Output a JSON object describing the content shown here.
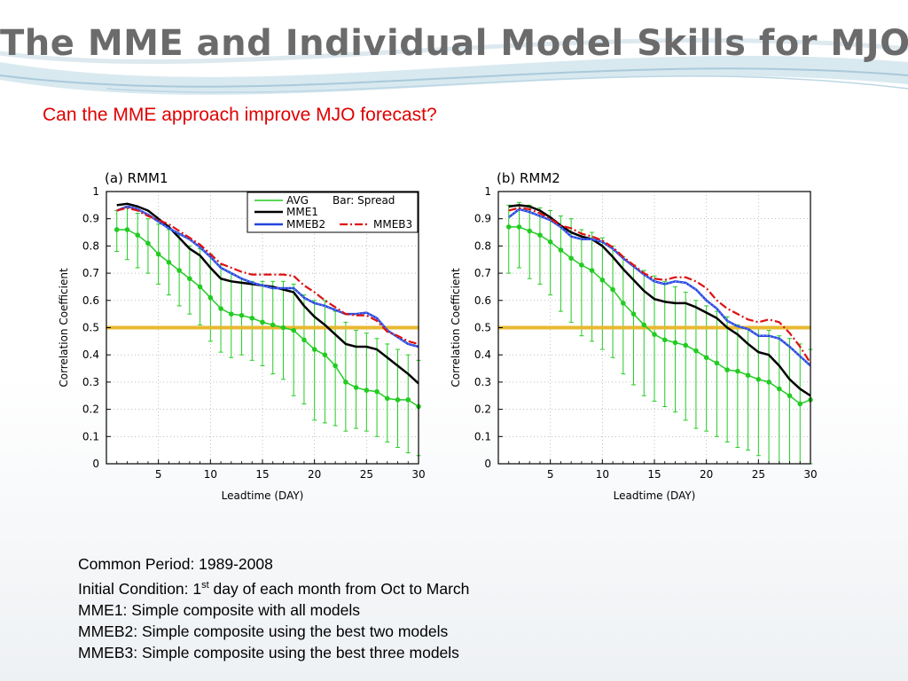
{
  "slide": {
    "title": "The MME and Individual Model Skills for MJO",
    "subtitle": "Can the MME approach improve MJO forecast?"
  },
  "colors": {
    "title_gray": "#6b6b6b",
    "subtitle_red": "#e00000",
    "avg_green": "#22cc22",
    "mme1_black": "#000000",
    "mmeb2_blue": "#2244dd",
    "mmeb3_red": "#dd1111",
    "threshold_gold": "#e8b830"
  },
  "notes": {
    "line1": "Common Period: 1989-2008",
    "line2_pre": "Initial Condition: 1",
    "line2_sup": "st",
    "line2_post": " day of each month from Oct to March",
    "line3": "MME1: Simple composite with all models",
    "line4": "MMEB2: Simple composite using the best two models",
    "line5": "MMEB3: Simple composite using the best three models"
  },
  "chart_data": [
    {
      "type": "line",
      "title": "(a) RMM1",
      "xlabel": "Leadtime (DAY)",
      "ylabel": "Correlation Coefficient",
      "xlim": [
        0,
        30
      ],
      "ylim": [
        0,
        1
      ],
      "xticks": [
        5,
        10,
        15,
        20,
        25,
        30
      ],
      "yticks": [
        0,
        0.1,
        0.2,
        0.3,
        0.4,
        0.5,
        0.6,
        0.7,
        0.8,
        0.9,
        1
      ],
      "grid": true,
      "threshold": 0.5,
      "legend": {
        "placement": "top-right",
        "avg": "AVG",
        "spread": "Bar: Spread",
        "mme1": "MME1",
        "mmeb2": "MMEB2",
        "mmeb3": "MMEB3"
      },
      "x": [
        1,
        2,
        3,
        4,
        5,
        6,
        7,
        8,
        9,
        10,
        11,
        12,
        13,
        14,
        15,
        16,
        17,
        18,
        19,
        20,
        21,
        22,
        23,
        24,
        25,
        26,
        27,
        28,
        29,
        30
      ],
      "series": [
        {
          "name": "AVG",
          "values": [
            0.86,
            0.86,
            0.84,
            0.81,
            0.77,
            0.74,
            0.71,
            0.68,
            0.65,
            0.61,
            0.57,
            0.55,
            0.545,
            0.535,
            0.52,
            0.51,
            0.5,
            0.49,
            0.455,
            0.42,
            0.4,
            0.36,
            0.3,
            0.28,
            0.27,
            0.265,
            0.24,
            0.235,
            0.235,
            0.21
          ],
          "spread_low": [
            0.78,
            0.75,
            0.72,
            0.7,
            0.66,
            0.62,
            0.58,
            0.55,
            0.51,
            0.45,
            0.41,
            0.39,
            0.4,
            0.38,
            0.36,
            0.33,
            0.31,
            0.25,
            0.22,
            0.16,
            0.15,
            0.14,
            0.12,
            0.13,
            0.12,
            0.1,
            0.08,
            0.06,
            0.04,
            0.03
          ],
          "spread_high": [
            0.93,
            0.94,
            0.92,
            0.9,
            0.88,
            0.86,
            0.84,
            0.8,
            0.79,
            0.77,
            0.73,
            0.7,
            0.68,
            0.67,
            0.67,
            0.67,
            0.67,
            0.66,
            0.62,
            0.6,
            0.6,
            0.56,
            0.52,
            0.49,
            0.48,
            0.46,
            0.44,
            0.42,
            0.4,
            0.38
          ]
        },
        {
          "name": "MME1",
          "values": [
            0.95,
            0.955,
            0.945,
            0.93,
            0.9,
            0.87,
            0.83,
            0.79,
            0.765,
            0.72,
            0.68,
            0.67,
            0.665,
            0.66,
            0.655,
            0.65,
            0.64,
            0.63,
            0.58,
            0.54,
            0.51,
            0.475,
            0.44,
            0.43,
            0.43,
            0.42,
            0.39,
            0.36,
            0.33,
            0.295
          ]
        },
        {
          "name": "MMEB2",
          "values": [
            0.93,
            0.945,
            0.935,
            0.915,
            0.89,
            0.865,
            0.845,
            0.825,
            0.795,
            0.76,
            0.72,
            0.7,
            0.68,
            0.665,
            0.655,
            0.645,
            0.645,
            0.645,
            0.61,
            0.59,
            0.58,
            0.565,
            0.55,
            0.55,
            0.555,
            0.535,
            0.49,
            0.465,
            0.44,
            0.43
          ]
        },
        {
          "name": "MMEB3",
          "values": [
            0.93,
            0.94,
            0.93,
            0.91,
            0.895,
            0.88,
            0.855,
            0.83,
            0.805,
            0.77,
            0.735,
            0.72,
            0.705,
            0.695,
            0.695,
            0.695,
            0.695,
            0.69,
            0.655,
            0.63,
            0.6,
            0.575,
            0.55,
            0.545,
            0.545,
            0.525,
            0.485,
            0.47,
            0.45,
            0.44
          ]
        }
      ]
    },
    {
      "type": "line",
      "title": "(b) RMM2",
      "xlabel": "Leadtime (DAY)",
      "ylabel": "Correlation Coefficient",
      "xlim": [
        0,
        30
      ],
      "ylim": [
        0,
        1
      ],
      "xticks": [
        5,
        10,
        15,
        20,
        25,
        30
      ],
      "yticks": [
        0,
        0.1,
        0.2,
        0.3,
        0.4,
        0.5,
        0.6,
        0.7,
        0.8,
        0.9,
        1
      ],
      "grid": true,
      "threshold": 0.5,
      "x": [
        1,
        2,
        3,
        4,
        5,
        6,
        7,
        8,
        9,
        10,
        11,
        12,
        13,
        14,
        15,
        16,
        17,
        18,
        19,
        20,
        21,
        22,
        23,
        24,
        25,
        26,
        27,
        28,
        29,
        30
      ],
      "series": [
        {
          "name": "AVG",
          "values": [
            0.87,
            0.87,
            0.855,
            0.84,
            0.815,
            0.785,
            0.755,
            0.73,
            0.71,
            0.675,
            0.64,
            0.59,
            0.55,
            0.51,
            0.475,
            0.455,
            0.445,
            0.435,
            0.415,
            0.39,
            0.37,
            0.345,
            0.34,
            0.325,
            0.31,
            0.3,
            0.275,
            0.25,
            0.22,
            0.235
          ],
          "spread_low": [
            0.7,
            0.72,
            0.68,
            0.66,
            0.62,
            0.56,
            0.52,
            0.47,
            0.45,
            0.42,
            0.39,
            0.33,
            0.29,
            0.25,
            0.23,
            0.21,
            0.19,
            0.16,
            0.13,
            0.12,
            0.1,
            0.08,
            0.06,
            0.05,
            0.03,
            0.0,
            0.0,
            0.0,
            0.0,
            0.0
          ],
          "spread_high": [
            0.95,
            0.96,
            0.95,
            0.94,
            0.93,
            0.91,
            0.9,
            0.86,
            0.85,
            0.83,
            0.8,
            0.76,
            0.73,
            0.71,
            0.69,
            0.67,
            0.65,
            0.63,
            0.6,
            0.58,
            0.56,
            0.54,
            0.51,
            0.5,
            0.5,
            0.49,
            0.47,
            0.46,
            0.44,
            0.42
          ]
        },
        {
          "name": "MME1",
          "values": [
            0.945,
            0.95,
            0.945,
            0.93,
            0.905,
            0.875,
            0.85,
            0.835,
            0.825,
            0.8,
            0.76,
            0.715,
            0.675,
            0.635,
            0.605,
            0.595,
            0.59,
            0.59,
            0.575,
            0.555,
            0.535,
            0.5,
            0.475,
            0.44,
            0.41,
            0.4,
            0.36,
            0.31,
            0.275,
            0.25
          ]
        },
        {
          "name": "MMEB2",
          "values": [
            0.905,
            0.935,
            0.925,
            0.91,
            0.895,
            0.87,
            0.835,
            0.825,
            0.825,
            0.815,
            0.79,
            0.755,
            0.725,
            0.695,
            0.67,
            0.66,
            0.67,
            0.665,
            0.64,
            0.6,
            0.57,
            0.525,
            0.505,
            0.495,
            0.47,
            0.47,
            0.46,
            0.43,
            0.395,
            0.36
          ]
        },
        {
          "name": "MMEB3",
          "values": [
            0.93,
            0.94,
            0.935,
            0.92,
            0.9,
            0.875,
            0.865,
            0.845,
            0.835,
            0.82,
            0.795,
            0.76,
            0.73,
            0.7,
            0.68,
            0.675,
            0.685,
            0.685,
            0.67,
            0.645,
            0.6,
            0.57,
            0.55,
            0.53,
            0.52,
            0.53,
            0.52,
            0.48,
            0.43,
            0.37
          ]
        }
      ]
    }
  ]
}
